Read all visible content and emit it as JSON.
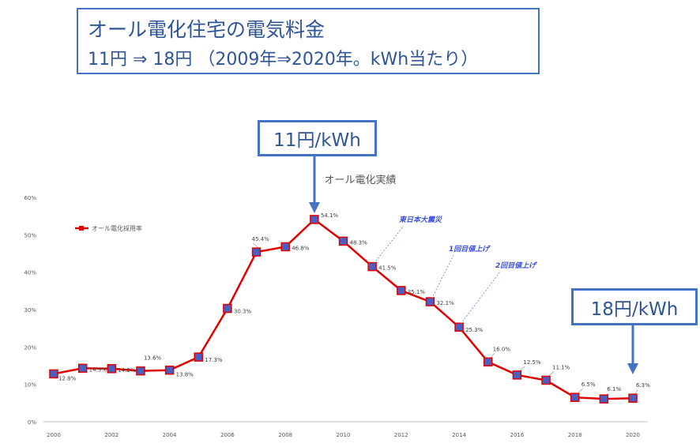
{
  "title": {
    "line1": "オール電化住宅の電気料金",
    "line2": "11円 ⇒ 18円 （2009年⇒2020年。kWh当たり）"
  },
  "callouts": {
    "price_2009": "11円/kWh",
    "price_2020": "18円/kWh"
  },
  "colors": {
    "accent_blue": "#4472c4",
    "title_text": "#2f5597",
    "series_red": "#e00000",
    "marker_blue": "#4a5fc1",
    "annotation_blue": "#3b4fe0"
  },
  "chart_data": {
    "type": "line",
    "title": "オール電化実績",
    "xlabel": "",
    "ylabel": "",
    "xlim": [
      2000,
      2020
    ],
    "ylim": [
      0,
      60
    ],
    "grid": false,
    "legend_position": "top-left",
    "x_ticks": [
      "2000",
      "2002",
      "2004",
      "2006",
      "2008",
      "2010",
      "2012",
      "2014",
      "2016",
      "2018",
      "2020"
    ],
    "y_ticks": [
      "0%",
      "10%",
      "20%",
      "30%",
      "40%",
      "50%",
      "60%"
    ],
    "series": [
      {
        "name": "オール電化採用率",
        "x": [
          2000,
          2001,
          2002,
          2003,
          2004,
          2005,
          2006,
          2007,
          2008,
          2009,
          2010,
          2011,
          2012,
          2013,
          2014,
          2015,
          2016,
          2017,
          2018,
          2019,
          2020
        ],
        "values": [
          12.8,
          14.3,
          14.2,
          13.6,
          13.8,
          17.3,
          30.3,
          45.4,
          46.8,
          54.1,
          48.3,
          41.5,
          35.1,
          32.1,
          25.3,
          16.0,
          12.5,
          11.1,
          6.5,
          6.1,
          6.3
        ],
        "labels": [
          "12.8%",
          "14.3%",
          "14.2%",
          "13.6%",
          "13.8%",
          "17.3%",
          "30.3%",
          "45.4%",
          "46.8%",
          "54.1%",
          "48.3%",
          "41.5%",
          "35.1%",
          "32.1%",
          "25.3%",
          "16.0%",
          "12.5%",
          "11.1%",
          "6.5%",
          "6.1%",
          "6.3%"
        ]
      }
    ],
    "annotations": [
      {
        "text": "東日本大震災",
        "year": 2011
      },
      {
        "text": "1回目値上げ",
        "year": 2013
      },
      {
        "text": "2回目値上げ",
        "year": 2014
      }
    ]
  }
}
